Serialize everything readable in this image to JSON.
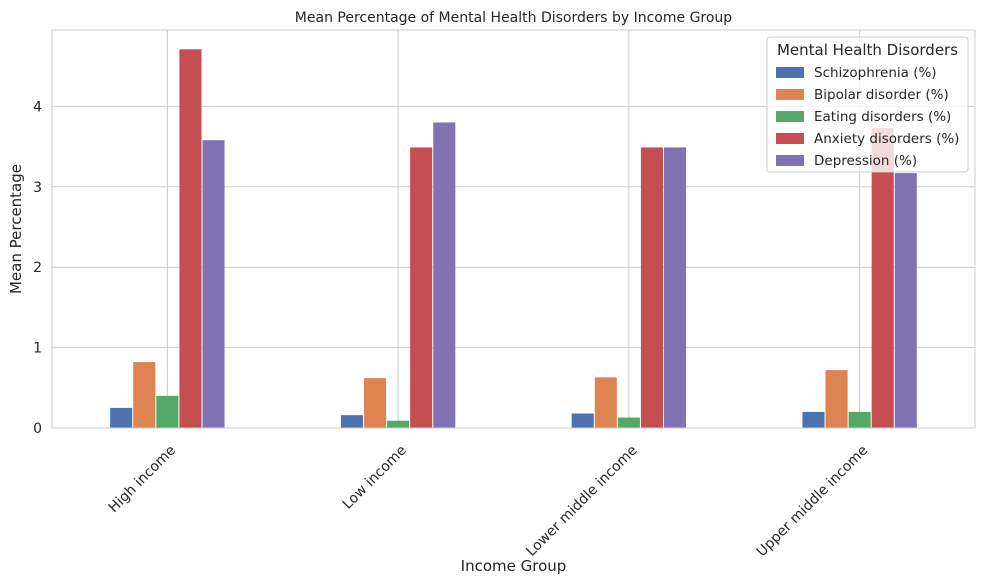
{
  "chart_data": {
    "type": "bar",
    "title": "Mean Percentage of Mental Health Disorders by Income Group",
    "xlabel": "Income Group",
    "ylabel": "Mean Percentage",
    "categories": [
      "High income",
      "Low income",
      "Lower middle income",
      "Upper middle income"
    ],
    "ylim": [
      0,
      4.95
    ],
    "yticks": [
      0,
      1,
      2,
      3,
      4
    ],
    "grid": true,
    "legend": {
      "title": "Mental Health Disorders",
      "placement": "top-right"
    },
    "series": [
      {
        "name": "Schizophrenia (%)",
        "color": "#4c72b0",
        "values": [
          0.25,
          0.16,
          0.18,
          0.2
        ]
      },
      {
        "name": "Bipolar disorder (%)",
        "color": "#dd8452",
        "values": [
          0.82,
          0.62,
          0.63,
          0.72
        ]
      },
      {
        "name": "Eating disorders (%)",
        "color": "#55a868",
        "values": [
          0.4,
          0.09,
          0.13,
          0.2
        ]
      },
      {
        "name": "Anxiety disorders (%)",
        "color": "#c44e52",
        "values": [
          4.71,
          3.49,
          3.49,
          3.73
        ]
      },
      {
        "name": "Depression (%)",
        "color": "#8172b3",
        "values": [
          3.58,
          3.8,
          3.49,
          3.17
        ]
      }
    ]
  }
}
